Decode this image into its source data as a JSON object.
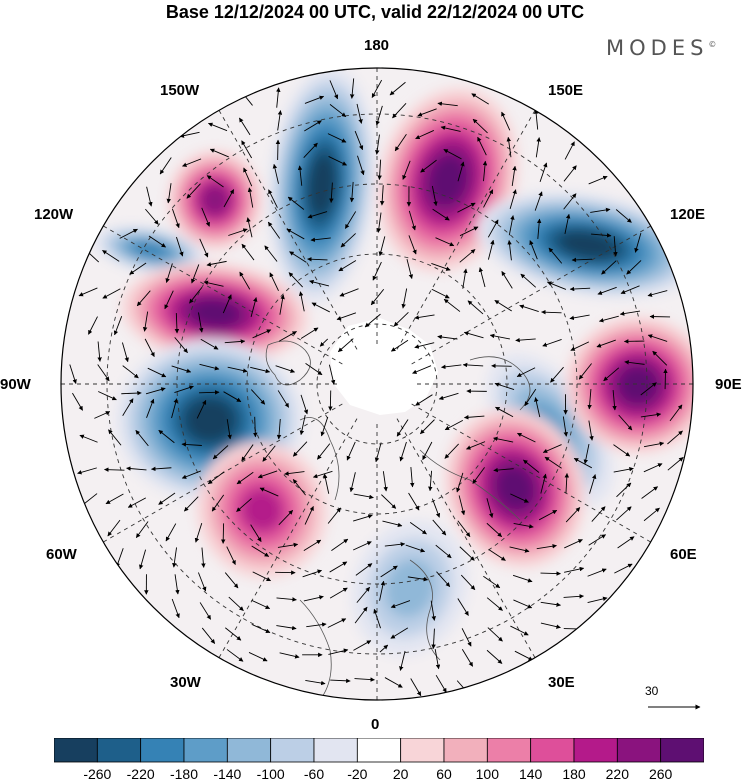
{
  "title": "Base 12/12/2024 00 UTC, valid 22/12/2024 00 UTC",
  "brand": "MODES",
  "brand_mark": "©",
  "longitude_labels": {
    "lon_180": "180",
    "lon_150e": "150E",
    "lon_120e": "120E",
    "lon_90e": "90E",
    "lon_60e": "60E",
    "lon_30e": "30E",
    "lon_0": "0",
    "lon_30w": "30W",
    "lon_60w": "60W",
    "lon_90w": "90W",
    "lon_120w": "120W",
    "lon_150w": "150W"
  },
  "reference_vector": {
    "label": "30"
  },
  "colorbar": {
    "ticks": [
      "-260",
      "-220",
      "-180",
      "-140",
      "-100",
      "-60",
      "-20",
      "20",
      "60",
      "100",
      "140",
      "180",
      "220",
      "260"
    ],
    "colors": [
      "#173f5f",
      "#1e5f8a",
      "#3582b5",
      "#5e9dc8",
      "#90b8d8",
      "#bccfe6",
      "#e2e5f1",
      "#ffffff",
      "#f8d5d8",
      "#f2b0bc",
      "#ec7fa8",
      "#de4f9a",
      "#b41a8a",
      "#8a137e",
      "#5e0f72"
    ]
  },
  "anomaly_centers": [
    {
      "sign": "negative",
      "level": 260
    },
    {
      "sign": "positive",
      "level": 260
    },
    {
      "sign": "negative",
      "level": 260
    },
    {
      "sign": "positive",
      "level": 220
    },
    {
      "sign": "negative",
      "level": 180
    },
    {
      "sign": "positive",
      "level": 260
    },
    {
      "sign": "negative",
      "level": 140
    },
    {
      "sign": "positive",
      "level": 260
    },
    {
      "sign": "negative",
      "level": 100
    },
    {
      "sign": "positive",
      "level": 260
    },
    {
      "sign": "negative",
      "level": 260
    },
    {
      "sign": "positive",
      "level": 180
    }
  ]
}
